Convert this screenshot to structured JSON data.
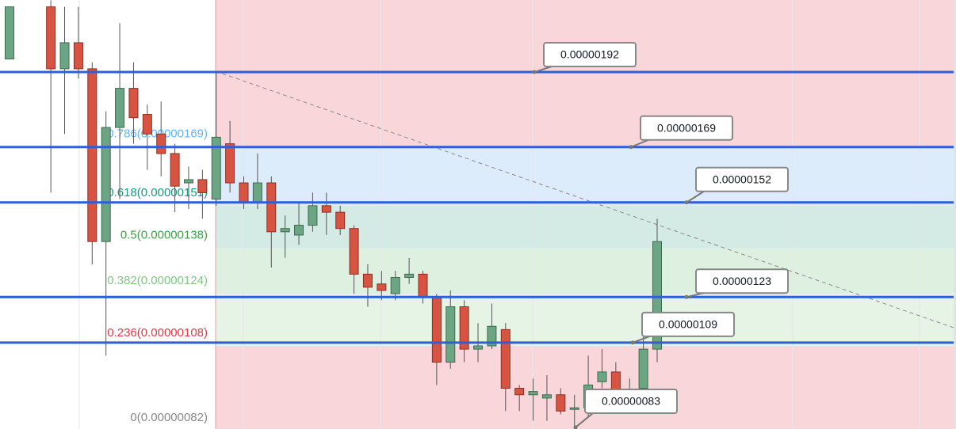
{
  "chart_data": {
    "type": "candlestick",
    "ylim": [
      8.25e-07,
      2.141e-06
    ],
    "up_color": "#6ba583",
    "down_color": "#d75442",
    "open": [
      1.96e-06,
      null,
      null,
      2.12e-06,
      1.93e-06,
      2.01e-06,
      1.93e-06,
      1.4e-06,
      1.75e-06,
      1.87e-06,
      1.79e-06,
      1.73e-06,
      1.67e-06,
      1.58e-06,
      1.59e-06,
      1.53e-06,
      1.7e-06,
      1.58e-06,
      1.52e-06,
      1.58e-06,
      1.43e-06,
      1.42e-06,
      1.45e-06,
      1.51e-06,
      1.49e-06,
      1.44e-06,
      1.3e-06,
      1.27e-06,
      1.24e-06,
      1.29e-06,
      1.3e-06,
      1.23e-06,
      1.03e-06,
      1.2e-06,
      1.07e-06,
      1.08e-06,
      1.13e-06,
      9.5e-07,
      9.3e-07,
      9.2e-07,
      9.3e-07,
      8.9e-07,
      8.9e-07,
      9.7e-07,
      1e-06,
      9.3e-07,
      9.5e-07,
      1.07e-06
    ],
    "high": [
      2.12e-06,
      null,
      null,
      2.14e-06,
      2.12e-06,
      2.12e-06,
      1.95e-06,
      1.8e-06,
      2.07e-06,
      1.95e-06,
      1.82e-06,
      1.83e-06,
      1.7e-06,
      1.63e-06,
      1.62e-06,
      1.92e-06,
      1.77e-06,
      1.6e-06,
      1.67e-06,
      1.6e-06,
      1.48e-06,
      1.52e-06,
      1.55e-06,
      1.55e-06,
      1.51e-06,
      1.45e-06,
      1.33e-06,
      1.31e-06,
      1.31e-06,
      1.35e-06,
      1.31e-06,
      1.24e-06,
      1.25e-06,
      1.22e-06,
      1.15e-06,
      1.21e-06,
      1.15e-06,
      9.6e-07,
      9.8e-07,
      9.9e-07,
      9.5e-07,
      9.3e-07,
      1.05e-06,
      1.07e-06,
      1.03e-06,
      9.8e-07,
      1.13e-06,
      1.47e-06
    ],
    "low": [
      1.96e-06,
      null,
      null,
      1.55e-06,
      1.73e-06,
      1.9e-06,
      1.33e-06,
      1.05e-06,
      1.53e-06,
      1.7e-06,
      1.62e-06,
      1.6e-06,
      1.49e-06,
      1.5e-06,
      1.47e-06,
      1.51e-06,
      1.55e-06,
      1.5e-06,
      1.5e-06,
      1.32e-06,
      1.35e-06,
      1.39e-06,
      1.43e-06,
      1.42e-06,
      1.42e-06,
      1.24e-06,
      1.2e-06,
      1.22e-06,
      1.22e-06,
      1.27e-06,
      1.21e-06,
      9.6e-07,
      1.01e-06,
      1.03e-06,
      1.03e-06,
      1.07e-06,
      8.8e-07,
      8.8e-07,
      8.5e-07,
      8.5e-07,
      8.7e-07,
      8.3e-07,
      8.6e-07,
      9.5e-07,
      9.2e-07,
      9.1e-07,
      9.3e-07,
      1.03e-06
    ],
    "close": [
      2.12e-06,
      null,
      null,
      1.93e-06,
      2.01e-06,
      1.93e-06,
      1.4e-06,
      1.75e-06,
      1.87e-06,
      1.78e-06,
      1.73e-06,
      1.67e-06,
      1.57e-06,
      1.59e-06,
      1.55e-06,
      1.72e-06,
      1.58e-06,
      1.52e-06,
      1.58e-06,
      1.43e-06,
      1.44e-06,
      1.45e-06,
      1.51e-06,
      1.49e-06,
      1.44e-06,
      1.3e-06,
      1.26e-06,
      1.25e-06,
      1.29e-06,
      1.3e-06,
      1.23e-06,
      1.03e-06,
      1.2e-06,
      1.07e-06,
      1.08e-06,
      1.14e-06,
      9.5e-07,
      9.3e-07,
      9.4e-07,
      9.3e-07,
      8.8e-07,
      8.9e-07,
      9.6e-07,
      1e-06,
      9.4e-07,
      9.4e-07,
      1.07e-06,
      1.4e-06
    ],
    "levels": [
      {
        "value": 1.92e-06,
        "label": "0.00000192"
      },
      {
        "value": 1.69e-06,
        "label": "0.00000169"
      },
      {
        "value": 1.52e-06,
        "label": "0.00000152"
      },
      {
        "value": 1.23e-06,
        "label": "0.00000123"
      },
      {
        "value": 1.09e-06,
        "label": "0.00000109"
      }
    ],
    "low_callout": {
      "value": 8.3e-07,
      "label": "0.00000083"
    },
    "fib": [
      {
        "value": 1.69e-06,
        "label": "0.786(0.00000169)",
        "color": "#64b5f6"
      },
      {
        "value": 1.51e-06,
        "label": "0.618(0.00000151)",
        "color": "#159980"
      },
      {
        "value": 1.38e-06,
        "label": "0.5(0.00000138)",
        "color": "#43a047"
      },
      {
        "value": 1.24e-06,
        "label": "0.382(0.00000124)",
        "color": "#81c784"
      },
      {
        "value": 1.08e-06,
        "label": "0.236(0.00000108)",
        "color": "#e53945"
      },
      {
        "value": 8.2e-07,
        "label": "0(0.00000082)",
        "color": "#888888"
      }
    ],
    "level_color": "#2f5fd6"
  }
}
